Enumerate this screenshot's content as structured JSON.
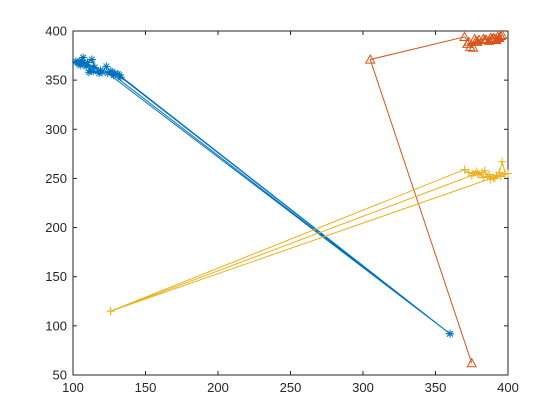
{
  "chart_data": {
    "type": "line",
    "title": "",
    "xlabel": "",
    "ylabel": "",
    "xlim": [
      100,
      400
    ],
    "ylim": [
      50,
      400
    ],
    "x_ticks": [
      100,
      150,
      200,
      250,
      300,
      350,
      400
    ],
    "y_ticks": [
      50,
      100,
      150,
      200,
      250,
      300,
      350,
      400
    ],
    "x_tick_labels": [
      "100",
      "150",
      "200",
      "250",
      "300",
      "350",
      "400"
    ],
    "y_tick_labels": [
      "50",
      "100",
      "150",
      "200",
      "250",
      "300",
      "350",
      "400"
    ],
    "grid": false,
    "legend": "none",
    "series": [
      {
        "color": "#0072BD",
        "marker": "asterisk",
        "points": [
          [
            102,
            369
          ],
          [
            104,
            367
          ],
          [
            107,
            373
          ],
          [
            105,
            365
          ],
          [
            110,
            368
          ],
          [
            112,
            360
          ],
          [
            108,
            366
          ],
          [
            115,
            363
          ],
          [
            113,
            371
          ],
          [
            118,
            357
          ],
          [
            111,
            358
          ],
          [
            120,
            358
          ],
          [
            123,
            364
          ],
          [
            126,
            359
          ],
          [
            129,
            357
          ],
          [
            131,
            356
          ],
          [
            133,
            353
          ],
          [
            360,
            92
          ],
          [
            128,
            355
          ],
          [
            119,
            360
          ],
          [
            106,
            370
          ],
          [
            103,
            368
          ],
          [
            109,
            364
          ],
          [
            114,
            359
          ],
          [
            127,
            358
          ],
          [
            132,
            355
          ],
          [
            360,
            92
          ],
          [
            124,
            357
          ]
        ]
      },
      {
        "color": "#D95319",
        "marker": "triangle",
        "points": [
          [
            375,
            62
          ],
          [
            305,
            371
          ],
          [
            370,
            394
          ],
          [
            373,
            389
          ],
          [
            374,
            384
          ],
          [
            376,
            383
          ],
          [
            372,
            387
          ],
          [
            378,
            390
          ],
          [
            380,
            391
          ],
          [
            383,
            392
          ],
          [
            385,
            391
          ],
          [
            387,
            390
          ],
          [
            389,
            392
          ],
          [
            390,
            393
          ],
          [
            392,
            391
          ],
          [
            393,
            394
          ],
          [
            394,
            393
          ],
          [
            395,
            395
          ],
          [
            396,
            396
          ],
          [
            391,
            392
          ],
          [
            388,
            393
          ],
          [
            384,
            391
          ],
          [
            379,
            389
          ],
          [
            377,
            392
          ]
        ]
      },
      {
        "color": "#EDB120",
        "marker": "plus",
        "points": [
          [
            126,
            115
          ],
          [
            370,
            259
          ],
          [
            373,
            256
          ],
          [
            376,
            255
          ],
          [
            378,
            257
          ],
          [
            380,
            254
          ],
          [
            382,
            256
          ],
          [
            384,
            258
          ],
          [
            386,
            252
          ],
          [
            388,
            249
          ],
          [
            390,
            251
          ],
          [
            392,
            253
          ],
          [
            394,
            256
          ],
          [
            396,
            267
          ],
          [
            398,
            255
          ],
          [
            126,
            115
          ],
          [
            375,
            253
          ],
          [
            379,
            255
          ],
          [
            383,
            251
          ],
          [
            387,
            254
          ],
          [
            391,
            250
          ],
          [
            395,
            252
          ],
          [
            400,
            255
          ]
        ]
      }
    ]
  }
}
